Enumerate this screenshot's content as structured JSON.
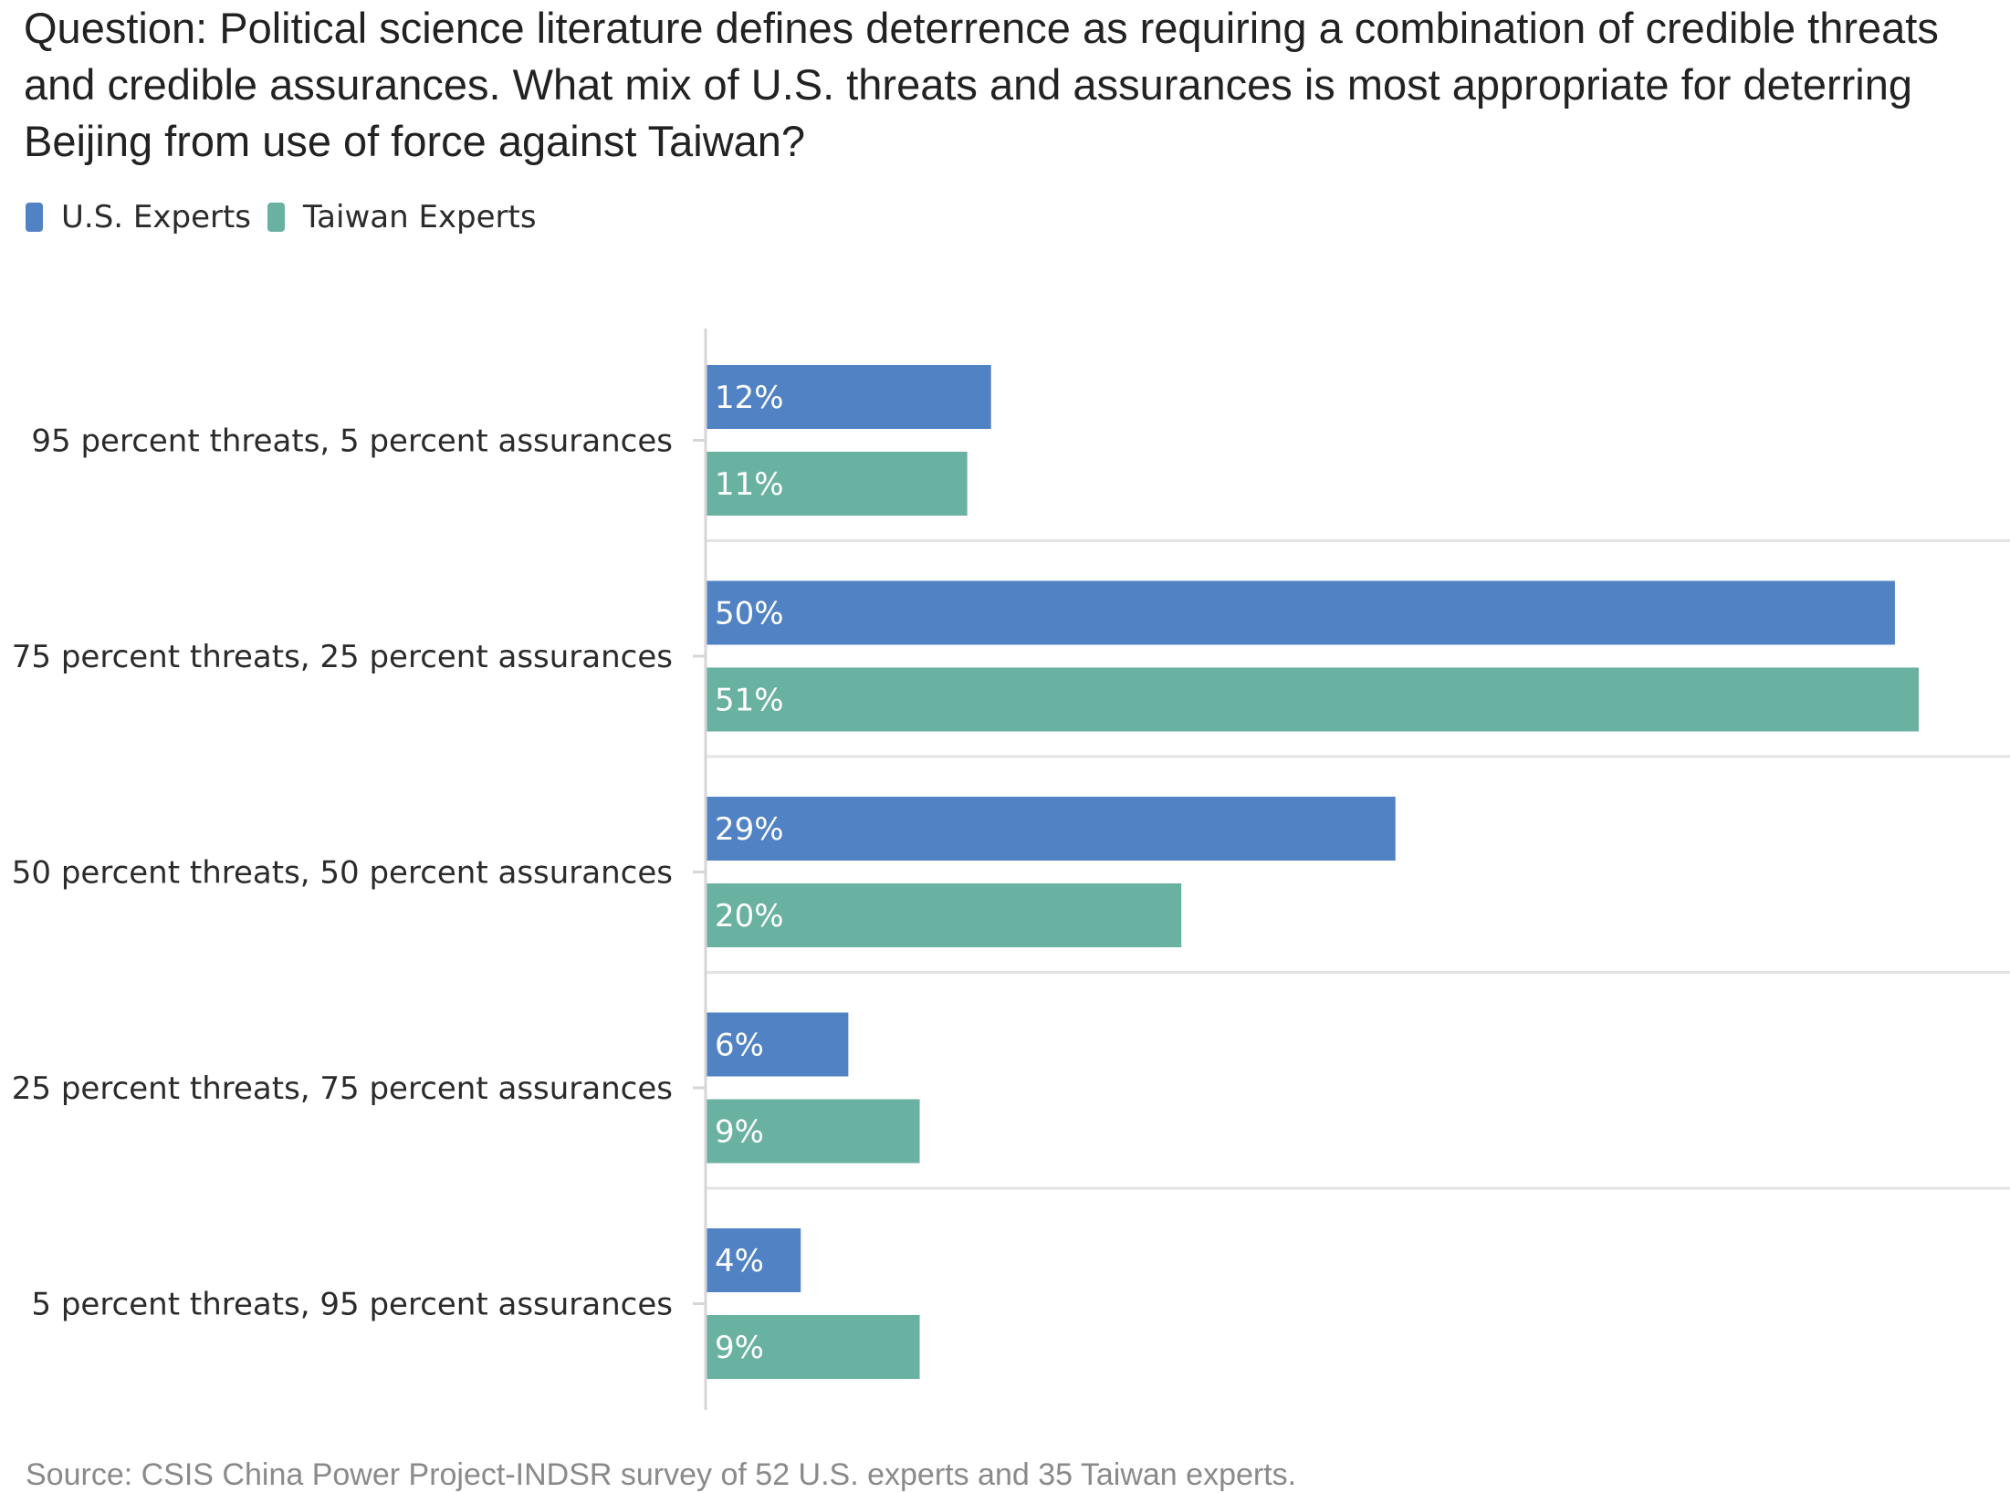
{
  "chart_data": {
    "type": "bar",
    "orientation": "horizontal",
    "title": "Question: Political science literature defines deterrence as requiring a combination of credible threats and credible assurances. What mix of U.S. threats and assurances is most appropriate for deterring Beijing from use of force against Taiwan?",
    "categories": [
      "95 percent threats, 5 percent assurances",
      "75 percent threats, 25 percent assurances",
      "50 percent threats, 50 percent assurances",
      "25 percent threats, 75 percent assurances",
      "5 percent threats, 95 percent assurances"
    ],
    "series": [
      {
        "name": "U.S. Experts",
        "color": "#5082c4",
        "values": [
          12,
          50,
          29,
          6,
          4
        ],
        "labels": [
          "12%",
          "50%",
          "29%",
          "6%",
          "4%"
        ]
      },
      {
        "name": "Taiwan Experts",
        "color": "#69b1a1",
        "values": [
          11,
          51,
          20,
          9,
          9
        ],
        "labels": [
          "11%",
          "51%",
          "20%",
          "9%",
          "9%"
        ]
      }
    ],
    "xlim": [
      0,
      52.5
    ],
    "value_unit": "%",
    "legend_position": "top-left",
    "grid": false,
    "source": "Source: CSIS China Power Project-INDSR survey of 52 U.S. experts and 35 Taiwan experts."
  }
}
